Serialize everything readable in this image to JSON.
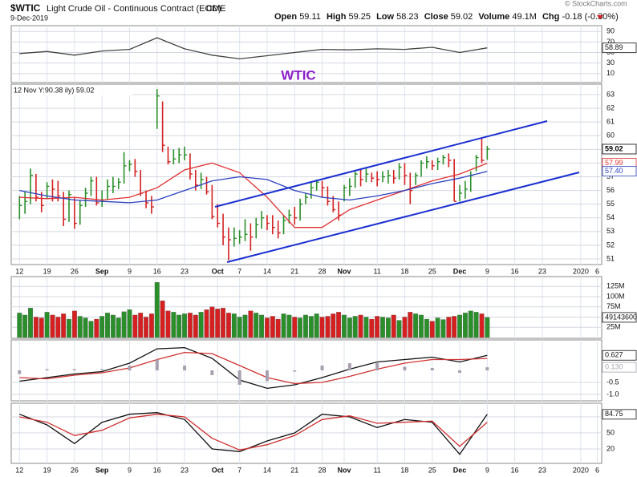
{
  "header": {
    "symbol": "$WTIC",
    "name": "Light Crude Oil - Continuous Contract (EOD)",
    "exchange": "CME",
    "date": "9-Dec-2019",
    "stats": [
      {
        "label": "Open",
        "value": "59.11"
      },
      {
        "label": "High",
        "value": "59.25"
      },
      {
        "label": "Low",
        "value": "58.23"
      },
      {
        "label": "Close",
        "value": "59.02"
      },
      {
        "label": "Volume",
        "value": "49.1M"
      },
      {
        "label": "Chg",
        "value": "-0.18 (-0.30%)"
      }
    ],
    "copyright": "© StockCharts.com"
  },
  "chart_data": [
    {
      "type": "line",
      "title": "WTIC",
      "xlim": [
        -1.5,
        105.8
      ],
      "ylim": [
        -7,
        101
      ],
      "yticks": [
        90,
        70,
        50,
        30,
        10
      ],
      "series": [
        {
          "color": "#444444",
          "x": [
            0,
            5,
            10,
            15,
            20,
            25,
            30,
            35,
            40,
            45,
            50,
            55,
            60,
            65,
            70,
            75,
            80,
            85
          ],
          "values": [
            48,
            52,
            45,
            53,
            56,
            78,
            57,
            45,
            38,
            44,
            50,
            56,
            55,
            57,
            56,
            60,
            50,
            58.89
          ]
        }
      ]
    },
    {
      "type": "ohlc",
      "annotation": "12 Nov Y:90.38 ily) 59.02",
      "xlim": [
        -1.5,
        105.8
      ],
      "ylim": [
        50.59,
        63.76
      ],
      "yticks": [
        63,
        62,
        61,
        60,
        59,
        58,
        57,
        56,
        55,
        54,
        53,
        52,
        51
      ],
      "xticks": [
        {
          "value": 0,
          "label": "12"
        },
        {
          "value": 5,
          "label": "19"
        },
        {
          "value": 10,
          "label": "26"
        },
        {
          "value": 15,
          "label": "Sep"
        },
        {
          "value": 20,
          "label": "9"
        },
        {
          "value": 25,
          "label": "16"
        },
        {
          "value": 30,
          "label": "23"
        },
        {
          "value": 36,
          "label": "Oct"
        },
        {
          "value": 40,
          "label": "7"
        },
        {
          "value": 45,
          "label": "14"
        },
        {
          "value": 50,
          "label": "21"
        },
        {
          "value": 55,
          "label": "28"
        },
        {
          "value": 59,
          "label": "Nov"
        },
        {
          "value": 65,
          "label": "11"
        },
        {
          "value": 70,
          "label": "18"
        },
        {
          "value": 75,
          "label": "25"
        },
        {
          "value": 80,
          "label": "Dec"
        },
        {
          "value": 85,
          "label": "9"
        },
        {
          "value": 90,
          "label": "16"
        },
        {
          "value": 95,
          "label": "23"
        },
        {
          "value": 102,
          "label": "2020"
        },
        {
          "value": 105,
          "label": "6"
        }
      ],
      "up_color": "#2a8f2a",
      "down_color": "#d42020",
      "x": [
        0,
        1,
        2,
        3,
        4,
        5,
        6,
        7,
        8,
        9,
        10,
        11,
        12,
        13,
        14,
        15,
        16,
        17,
        18,
        19,
        20,
        21,
        22,
        23,
        24,
        25,
        26,
        27,
        28,
        29,
        30,
        31,
        32,
        33,
        34,
        35,
        36,
        37,
        38,
        39,
        40,
        41,
        42,
        43,
        44,
        45,
        46,
        47,
        48,
        49,
        50,
        51,
        52,
        53,
        54,
        55,
        56,
        57,
        58,
        59,
        60,
        61,
        62,
        63,
        64,
        65,
        66,
        67,
        68,
        69,
        70,
        71,
        72,
        73,
        74,
        75,
        76,
        77,
        78,
        79,
        80,
        81,
        82,
        83,
        84,
        85
      ],
      "high": [
        55.6,
        55.9,
        57.6,
        57.2,
        55.9,
        56.6,
        56.8,
        56.7,
        55.9,
        56.0,
        55.5,
        55.3,
        56.2,
        57.0,
        57.0,
        56.0,
        56.8,
        57.0,
        56.9,
        58.8,
        58.2,
        58.3,
        57.5,
        56.0,
        55.6,
        63.4,
        62.5,
        59.2,
        59.0,
        59.1,
        59.2,
        58.7,
        57.5,
        57.3,
        57.0,
        56.4,
        55.0,
        54.3,
        53.3,
        53.3,
        53.1,
        53.9,
        53.6,
        54.0,
        54.5,
        54.2,
        54.2,
        53.8,
        54.2,
        54.6,
        54.8,
        55.4,
        55.8,
        56.6,
        56.8,
        56.7,
        56.3,
        55.6,
        55.2,
        56.4,
        56.9,
        57.5,
        57.6,
        57.6,
        57.3,
        57.4,
        57.4,
        57.5,
        57.5,
        58.0,
        58.0,
        57.3,
        57.3,
        58.2,
        58.5,
        58.2,
        58.4,
        58.6,
        58.7,
        58.3,
        56.4,
        56.7,
        57.4,
        58.6,
        59.85,
        59.25
      ],
      "low": [
        53.9,
        54.3,
        55.0,
        55.2,
        54.4,
        55.4,
        55.2,
        55.2,
        53.4,
        53.7,
        53.2,
        53.5,
        54.8,
        55.6,
        54.9,
        54.8,
        55.3,
        55.8,
        56.1,
        56.5,
        57.4,
        57.0,
        55.6,
        54.7,
        54.3,
        60.5,
        58.8,
        57.9,
        57.9,
        58.0,
        58.2,
        56.8,
        56.0,
        56.1,
        55.7,
        53.9,
        53.3,
        52.0,
        50.9,
        51.9,
        52.1,
        52.3,
        51.6,
        52.5,
        53.2,
        53.1,
        52.8,
        52.5,
        52.8,
        53.6,
        53.5,
        53.8,
        55.0,
        55.4,
        56.0,
        55.5,
        54.9,
        54.4,
        53.8,
        55.2,
        55.6,
        56.2,
        56.3,
        56.6,
        56.6,
        56.3,
        56.6,
        56.5,
        56.5,
        56.8,
        56.4,
        55.0,
        56.4,
        57.0,
        57.6,
        57.5,
        57.5,
        57.9,
        57.7,
        55.2,
        55.2,
        55.4,
        55.9,
        57.4,
        58.0,
        58.23
      ],
      "close": [
        54.9,
        55.2,
        57.1,
        55.5,
        54.9,
        56.3,
        56.1,
        55.6,
        53.9,
        55.7,
        53.6,
        54.9,
        55.8,
        56.7,
        55.1,
        55.3,
        56.3,
        56.3,
        56.6,
        57.8,
        57.9,
        57.4,
        55.8,
        55.1,
        54.8,
        62.9,
        59.3,
        58.1,
        58.3,
        58.6,
        58.6,
        57.2,
        56.4,
        56.8,
        55.9,
        54.1,
        53.6,
        52.6,
        52.4,
        52.5,
        52.6,
        52.8,
        52.6,
        53.5,
        54.0,
        53.6,
        53.3,
        52.9,
        53.8,
        54.2,
        54.0,
        55.0,
        55.5,
        56.2,
        56.6,
        56.2,
        55.2,
        54.6,
        54.2,
        56.2,
        56.3,
        57.2,
        56.8,
        57.2,
        56.9,
        56.8,
        57.0,
        57.1,
        56.9,
        57.7,
        57.1,
        56.0,
        57.1,
        58.0,
        58.1,
        57.8,
        58.1,
        58.4,
        58.2,
        55.2,
        55.8,
        56.1,
        57.1,
        58.4,
        58.2,
        59.02
      ],
      "series": [
        {
          "color": "#e03030",
          "x": [
            0,
            5,
            10,
            15,
            20,
            25,
            30,
            35,
            40,
            45,
            50,
            55,
            60,
            65,
            70,
            75,
            80,
            85
          ],
          "values": [
            55.5,
            55.4,
            55.5,
            55.3,
            55.5,
            56.2,
            57.5,
            58.0,
            57.3,
            55.5,
            53.3,
            53.3,
            54.6,
            55.3,
            56.0,
            56.7,
            57.2,
            57.99
          ]
        },
        {
          "color": "#2a3fbf",
          "x": [
            0,
            5,
            10,
            15,
            20,
            25,
            30,
            35,
            40,
            45,
            50,
            55,
            60,
            65,
            70,
            75,
            80,
            85
          ],
          "values": [
            56.0,
            55.6,
            55.3,
            55.2,
            55.1,
            55.3,
            56.0,
            56.7,
            57.0,
            56.8,
            56.0,
            55.5,
            55.3,
            55.6,
            56.0,
            56.5,
            56.9,
            57.4
          ],
          "last_label": "57.40"
        }
      ]
    },
    {
      "type": "bar",
      "xlim": [
        -1.5,
        105.8
      ],
      "ylim": [
        -2,
        149
      ],
      "yticks": [
        {
          "value": 125,
          "label": "125M"
        },
        {
          "value": 100,
          "label": "100M"
        },
        {
          "value": 75,
          "label": "75M"
        },
        {
          "value": 50,
          "label": "50M"
        },
        {
          "value": 25,
          "label": "25M"
        }
      ],
      "x": [
        0,
        1,
        2,
        3,
        4,
        5,
        6,
        7,
        8,
        9,
        10,
        11,
        12,
        13,
        14,
        15,
        16,
        17,
        18,
        19,
        20,
        21,
        22,
        23,
        24,
        25,
        26,
        27,
        28,
        29,
        30,
        31,
        32,
        33,
        34,
        35,
        36,
        37,
        38,
        39,
        40,
        41,
        42,
        43,
        44,
        45,
        46,
        47,
        48,
        49,
        50,
        51,
        52,
        53,
        54,
        55,
        56,
        57,
        58,
        59,
        60,
        61,
        62,
        63,
        64,
        65,
        66,
        67,
        68,
        69,
        70,
        71,
        72,
        73,
        74,
        75,
        76,
        77,
        78,
        79,
        80,
        81,
        82,
        83,
        84,
        85
      ],
      "values": [
        60,
        55,
        72,
        50,
        48,
        62,
        55,
        50,
        58,
        45,
        65,
        52,
        48,
        40,
        45,
        52,
        60,
        55,
        48,
        63,
        68,
        55,
        60,
        50,
        58,
        135,
        90,
        65,
        62,
        55,
        58,
        60,
        55,
        62,
        68,
        75,
        70,
        72,
        60,
        58,
        50,
        55,
        65,
        60,
        55,
        48,
        52,
        45,
        58,
        55,
        50,
        48,
        55,
        52,
        58,
        50,
        52,
        58,
        62,
        55,
        48,
        52,
        55,
        50,
        45,
        52,
        50,
        48,
        55,
        42,
        50,
        62,
        58,
        55,
        45,
        40,
        48,
        44,
        50,
        52,
        55,
        60,
        65,
        62,
        58,
        49.1436
      ],
      "last_label": "49143600"
    },
    {
      "type": "line",
      "xlim": [
        -1.5,
        105.8
      ],
      "ylim": [
        -1.27,
        1.27
      ],
      "yticks": [
        -0.5,
        {
          "value": -1,
          "label": "-1.0"
        }
      ],
      "series": [
        {
          "color": "#111111",
          "x": [
            0,
            5,
            10,
            15,
            20,
            25,
            30,
            35,
            40,
            45,
            50,
            55,
            60,
            65,
            70,
            75,
            80,
            85
          ],
          "values": [
            -0.45,
            -0.3,
            -0.15,
            -0.05,
            0.3,
            0.9,
            0.95,
            0.5,
            -0.4,
            -0.75,
            -0.6,
            -0.3,
            0.05,
            0.35,
            0.45,
            0.55,
            0.35,
            0.627
          ]
        },
        {
          "color": "#d03030",
          "x": [
            0,
            5,
            10,
            15,
            20,
            25,
            30,
            35,
            40,
            45,
            50,
            55,
            60,
            65,
            70,
            75,
            80,
            85
          ],
          "values": [
            -0.3,
            -0.35,
            -0.2,
            -0.1,
            0.1,
            0.45,
            0.75,
            0.7,
            0.2,
            -0.3,
            -0.55,
            -0.5,
            -0.25,
            0.05,
            0.3,
            0.45,
            0.45,
            0.497
          ]
        },
        {
          "color": "#a8a0b0",
          "style": "bar",
          "x": [
            0,
            5,
            10,
            15,
            20,
            25,
            30,
            35,
            40,
            45,
            50,
            55,
            60,
            65,
            70,
            75,
            80,
            85
          ],
          "values": [
            -0.15,
            0.05,
            0.05,
            0.05,
            0.2,
            0.45,
            0.2,
            -0.2,
            -0.6,
            -0.45,
            -0.05,
            0.2,
            0.3,
            0.3,
            0.15,
            0.1,
            -0.1,
            0.13
          ],
          "last_label": "0.130"
        }
      ]
    },
    {
      "type": "line",
      "xlim": [
        -1.5,
        105.8
      ],
      "ylim": [
        -7,
        105.5
      ],
      "yticks": [
        80,
        50,
        20
      ],
      "xticks": [
        {
          "value": 0,
          "label": "12"
        },
        {
          "value": 5,
          "label": "19"
        },
        {
          "value": 10,
          "label": "26"
        },
        {
          "value": 15,
          "label": "Sep"
        },
        {
          "value": 20,
          "label": "9"
        },
        {
          "value": 25,
          "label": "16"
        },
        {
          "value": 30,
          "label": "23"
        },
        {
          "value": 36,
          "label": "Oct"
        },
        {
          "value": 40,
          "label": "7"
        },
        {
          "value": 45,
          "label": "14"
        },
        {
          "value": 50,
          "label": "21"
        },
        {
          "value": 55,
          "label": "28"
        },
        {
          "value": 59,
          "label": "Nov"
        },
        {
          "value": 65,
          "label": "11"
        },
        {
          "value": 70,
          "label": "18"
        },
        {
          "value": 75,
          "label": "25"
        },
        {
          "value": 80,
          "label": "Dec"
        },
        {
          "value": 85,
          "label": "9"
        },
        {
          "value": 90,
          "label": "16"
        },
        {
          "value": 95,
          "label": "23"
        },
        {
          "value": 102,
          "label": "2020"
        },
        {
          "value": 105,
          "label": "6"
        }
      ],
      "series": [
        {
          "color": "#111111",
          "x": [
            0,
            5,
            10,
            15,
            20,
            25,
            30,
            35,
            40,
            45,
            50,
            55,
            60,
            65,
            70,
            75,
            80,
            85
          ],
          "values": [
            85,
            65,
            30,
            70,
            85,
            88,
            75,
            20,
            15,
            35,
            50,
            85,
            80,
            60,
            75,
            70,
            10,
            84.75
          ]
        },
        {
          "color": "#d03030",
          "x": [
            0,
            5,
            10,
            15,
            20,
            25,
            30,
            35,
            40,
            45,
            50,
            55,
            60,
            65,
            70,
            75,
            80,
            85
          ],
          "values": [
            80,
            70,
            45,
            55,
            78,
            85,
            80,
            40,
            18,
            28,
            45,
            75,
            82,
            68,
            70,
            72,
            25,
            70
          ]
        }
      ]
    }
  ]
}
